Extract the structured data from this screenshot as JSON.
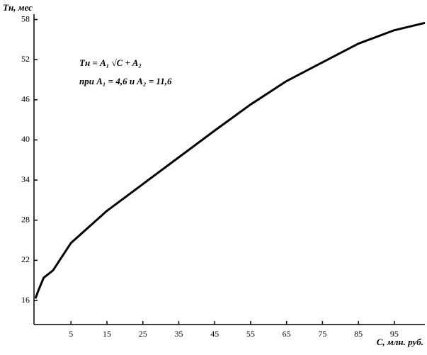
{
  "chart_data": {
    "type": "line",
    "y_label": "Tн, мес",
    "x_label": "C, млн. руб.",
    "annotations": [
      "Tн = A₁ √C + A₂",
      "при A₁ = 4,6 и A₂ = 11,6"
    ],
    "x": [
      -4.9,
      -4,
      -2.6,
      0,
      5,
      15,
      25,
      35,
      45,
      55,
      65,
      75,
      85,
      95,
      103.5
    ],
    "series": [
      {
        "color": "#000000",
        "values": [
          16.3,
          17.6,
          19.4,
          20.5,
          24.6,
          29.4,
          33.4,
          37.4,
          41.4,
          45.3,
          48.8,
          51.6,
          54.4,
          56.4,
          57.5
        ]
      }
    ],
    "xlim": [
      -5.3,
      103.5
    ],
    "xticks": [
      5,
      15,
      25,
      35,
      45,
      55,
      65,
      75,
      85,
      95
    ],
    "ylim": [
      12.4,
      58.8
    ],
    "yticks": [
      16,
      22,
      28,
      34,
      40,
      46,
      52,
      58
    ]
  }
}
